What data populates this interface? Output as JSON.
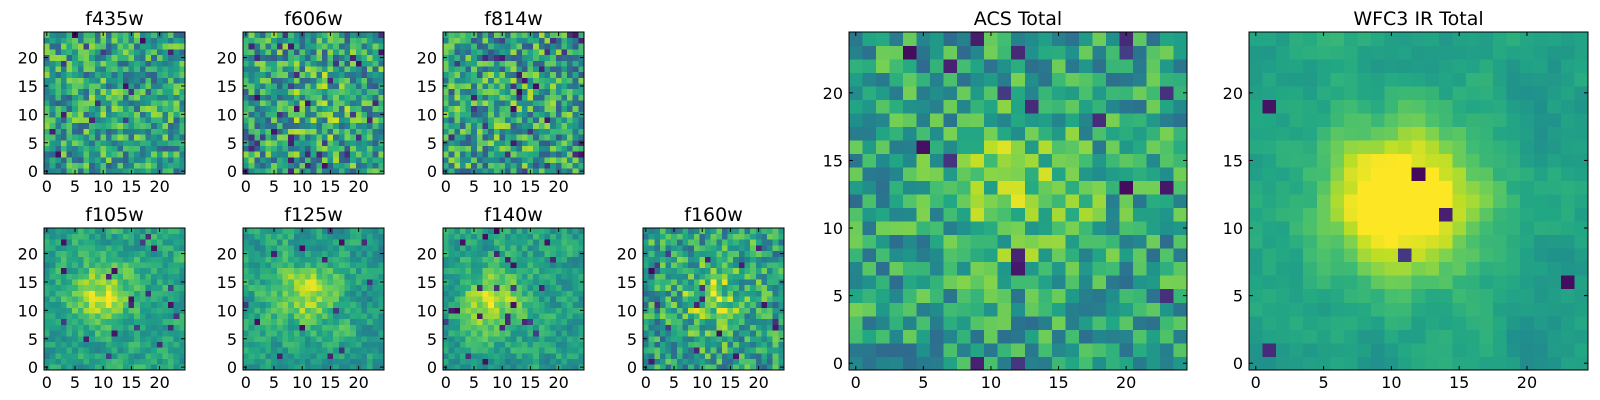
{
  "figure": {
    "colormap": "viridis",
    "colors": {
      "low": "#440154",
      "mid": "#21918c",
      "high": "#fde725"
    }
  },
  "chart_data": [
    {
      "id": "f435w",
      "type": "heatmap",
      "title": "f435w",
      "grid": [
        25,
        25
      ],
      "xlim": [
        -0.5,
        24.5
      ],
      "ylim": [
        -0.5,
        24.5
      ],
      "xticks": [
        0,
        5,
        10,
        15,
        20
      ],
      "yticks": [
        0,
        5,
        10,
        15,
        20
      ],
      "seed": 11,
      "bright_center": [
        12,
        12
      ],
      "bright_strength": 0.05,
      "noise": 0.55,
      "dark_spots": 0.035,
      "smooth": 0
    },
    {
      "id": "f606w",
      "type": "heatmap",
      "title": "f606w",
      "grid": [
        25,
        25
      ],
      "xlim": [
        -0.5,
        24.5
      ],
      "ylim": [
        -0.5,
        24.5
      ],
      "xticks": [
        0,
        5,
        10,
        15,
        20
      ],
      "yticks": [
        0,
        5,
        10,
        15,
        20
      ],
      "seed": 23,
      "bright_center": [
        13,
        12
      ],
      "bright_strength": 0.12,
      "noise": 0.6,
      "dark_spots": 0.05,
      "smooth": 0
    },
    {
      "id": "f814w",
      "type": "heatmap",
      "title": "f814w",
      "grid": [
        25,
        25
      ],
      "xlim": [
        -0.5,
        24.5
      ],
      "ylim": [
        -0.5,
        24.5
      ],
      "xticks": [
        0,
        5,
        10,
        15,
        20
      ],
      "yticks": [
        0,
        5,
        10,
        15,
        20
      ],
      "seed": 37,
      "bright_center": [
        12,
        12
      ],
      "bright_strength": 0.05,
      "noise": 0.6,
      "dark_spots": 0.05,
      "smooth": 0
    },
    {
      "id": "f105w",
      "type": "heatmap",
      "title": "f105w",
      "grid": [
        25,
        25
      ],
      "xlim": [
        -0.5,
        24.5
      ],
      "ylim": [
        -0.5,
        24.5
      ],
      "xticks": [
        0,
        5,
        10,
        15,
        20
      ],
      "yticks": [
        0,
        5,
        10,
        15,
        20
      ],
      "seed": 41,
      "bright_center": [
        10,
        13
      ],
      "bright_strength": 0.35,
      "noise": 0.45,
      "dark_spots": 0.03,
      "smooth": 1
    },
    {
      "id": "f125w",
      "type": "heatmap",
      "title": "f125w",
      "grid": [
        25,
        25
      ],
      "xlim": [
        -0.5,
        24.5
      ],
      "ylim": [
        -0.5,
        24.5
      ],
      "xticks": [
        0,
        5,
        10,
        15,
        20
      ],
      "yticks": [
        0,
        5,
        10,
        15,
        20
      ],
      "seed": 53,
      "bright_center": [
        11,
        13
      ],
      "bright_strength": 0.3,
      "noise": 0.45,
      "dark_spots": 0.03,
      "smooth": 1
    },
    {
      "id": "f140w",
      "type": "heatmap",
      "title": "f140w",
      "grid": [
        25,
        25
      ],
      "xlim": [
        -0.5,
        24.5
      ],
      "ylim": [
        -0.5,
        24.5
      ],
      "xticks": [
        0,
        5,
        10,
        15,
        20
      ],
      "yticks": [
        0,
        5,
        10,
        15,
        20
      ],
      "seed": 67,
      "bright_center": [
        8,
        12
      ],
      "bright_strength": 0.35,
      "noise": 0.45,
      "dark_spots": 0.03,
      "smooth": 1
    },
    {
      "id": "f160w",
      "type": "heatmap",
      "title": "f160w",
      "grid": [
        25,
        25
      ],
      "xlim": [
        -0.5,
        24.5
      ],
      "ylim": [
        -0.5,
        24.5
      ],
      "xticks": [
        0,
        5,
        10,
        15,
        20
      ],
      "yticks": [
        0,
        5,
        10,
        15,
        20
      ],
      "seed": 79,
      "bright_center": [
        12,
        12
      ],
      "bright_strength": 0.25,
      "noise": 0.5,
      "dark_spots": 0.04,
      "smooth": 0
    },
    {
      "id": "acs_total",
      "type": "heatmap",
      "title": "ACS Total",
      "grid": [
        25,
        25
      ],
      "xlim": [
        -0.5,
        24.5
      ],
      "ylim": [
        -0.5,
        24.5
      ],
      "xticks": [
        0,
        5,
        10,
        15,
        20
      ],
      "yticks": [
        0,
        5,
        10,
        15,
        20
      ],
      "seed": 97,
      "bright_center": [
        12,
        13
      ],
      "bright_strength": 0.22,
      "noise": 0.45,
      "dark_spots": 0.035,
      "smooth": 0
    },
    {
      "id": "wfc3_ir_total",
      "type": "heatmap",
      "title": "WFC3 IR Total",
      "grid": [
        25,
        25
      ],
      "xlim": [
        -0.5,
        24.5
      ],
      "ylim": [
        -0.5,
        24.5
      ],
      "xticks": [
        0,
        5,
        10,
        15,
        20
      ],
      "yticks": [
        0,
        5,
        10,
        15,
        20
      ],
      "seed": 131,
      "bright_center": [
        11,
        12
      ],
      "bright_strength": 0.6,
      "noise": 0.3,
      "dark_spots": 0.02,
      "smooth": 2
    }
  ]
}
